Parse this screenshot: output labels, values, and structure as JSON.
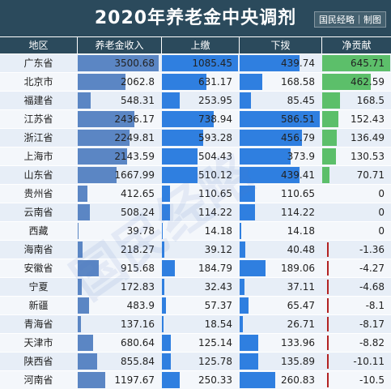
{
  "header": {
    "title": "2020年养老金中央调剂",
    "credit": "国民经略｜制图"
  },
  "columns": [
    "地区",
    "养老金收入",
    "上缴",
    "下拨",
    "净贡献"
  ],
  "watermark": "国民经略",
  "colors": {
    "header_bg": "#2b4a5c",
    "income_bar": "#5b86c4",
    "pay_bar": "#2f7fe0",
    "alloc_bar": "#2f7fe0",
    "net_bar": "#5cbf6a",
    "neg_marker": "#b22222",
    "row_even": "#e7eef7",
    "row_odd": "#f4f7fb"
  },
  "chart_data": {
    "type": "table",
    "title": "2020年养老金中央调剂",
    "columns": [
      "地区",
      "养老金收入",
      "上缴",
      "下拨",
      "净贡献"
    ],
    "rows": [
      {
        "region": "广东省",
        "income": 3500.68,
        "pay": 1085.45,
        "alloc": 439.74,
        "net": 645.71
      },
      {
        "region": "北京市",
        "income": 2062.8,
        "pay": 631.17,
        "alloc": 168.58,
        "net": 462.59
      },
      {
        "region": "福建省",
        "income": 548.31,
        "pay": 253.95,
        "alloc": 85.45,
        "net": 168.5
      },
      {
        "region": "江苏省",
        "income": 2436.17,
        "pay": 738.94,
        "alloc": 586.51,
        "net": 152.43
      },
      {
        "region": "浙江省",
        "income": 2249.81,
        "pay": 593.28,
        "alloc": 456.79,
        "net": 136.49
      },
      {
        "region": "上海市",
        "income": 2143.59,
        "pay": 504.43,
        "alloc": 373.9,
        "net": 130.53
      },
      {
        "region": "山东省",
        "income": 1667.99,
        "pay": 510.12,
        "alloc": 439.41,
        "net": 70.71
      },
      {
        "region": "贵州省",
        "income": 412.65,
        "pay": 110.65,
        "alloc": 110.65,
        "net": 0
      },
      {
        "region": "云南省",
        "income": 508.24,
        "pay": 114.22,
        "alloc": 114.22,
        "net": 0
      },
      {
        "region": "西藏",
        "income": 39.78,
        "pay": 14.18,
        "alloc": 14.18,
        "net": 0
      },
      {
        "region": "海南省",
        "income": 218.27,
        "pay": 39.12,
        "alloc": 40.48,
        "net": -1.36
      },
      {
        "region": "安徽省",
        "income": 915.68,
        "pay": 184.79,
        "alloc": 189.06,
        "net": -4.27
      },
      {
        "region": "宁夏",
        "income": 172.83,
        "pay": 32.43,
        "alloc": 37.11,
        "net": -4.68
      },
      {
        "region": "新疆",
        "income": 483.9,
        "pay": 57.37,
        "alloc": 65.47,
        "net": -8.1
      },
      {
        "region": "青海省",
        "income": 137.16,
        "pay": 18.54,
        "alloc": 26.71,
        "net": -8.17
      },
      {
        "region": "天津市",
        "income": 680.64,
        "pay": 125.14,
        "alloc": 133.96,
        "net": -8.82
      },
      {
        "region": "陕西省",
        "income": 855.84,
        "pay": 125.78,
        "alloc": 135.89,
        "net": -10.11
      },
      {
        "region": "河南省",
        "income": 1197.67,
        "pay": 250.33,
        "alloc": 260.83,
        "net": -10.5
      }
    ]
  }
}
